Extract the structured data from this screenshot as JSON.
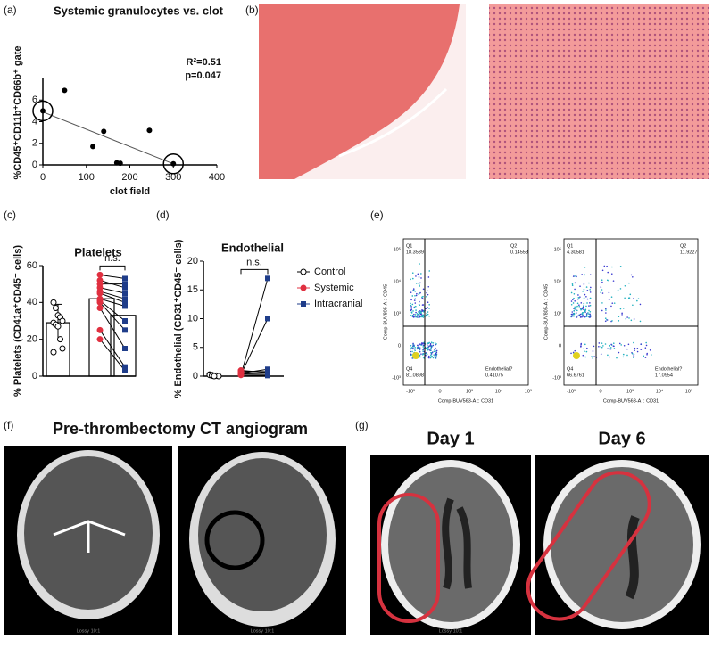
{
  "panel_labels": [
    "(a)",
    "(b)",
    "(c)",
    "(d)",
    "(e)",
    "(f)",
    "(g)"
  ],
  "chart_data": [
    {
      "type": "scatter",
      "title": "Systemic granulocytes vs. clot",
      "xlabel": "clot field",
      "ylabel": "%CD45⁺CD11b⁺CD66b⁺ gate",
      "annotations": [
        "R²=0.51",
        "p=0.047"
      ],
      "x": [
        0,
        50,
        115,
        140,
        170,
        178,
        245,
        300
      ],
      "values": [
        5.0,
        6.9,
        1.7,
        3.1,
        0.2,
        0.15,
        3.2,
        0.1
      ],
      "fit": {
        "x": [
          0,
          300
        ],
        "y": [
          4.9,
          0.1
        ]
      },
      "color": "#000000",
      "xlim": [
        0,
        400
      ],
      "xticks": [
        0,
        100,
        200,
        300,
        400
      ],
      "ylim": [
        0,
        8
      ],
      "yticks": [
        0,
        2,
        4,
        6
      ]
    },
    {
      "type": "paired_dot",
      "title": "Platelets",
      "ylabel": "% Platelets (CD41a⁺CD45⁻ cells)",
      "annotation": "n.s.",
      "ylim": [
        0,
        60
      ],
      "yticks": [
        0,
        20,
        40,
        60
      ],
      "series": [
        {
          "color": "#000000",
          "marker": "open",
          "values": [
            40,
            37,
            33,
            32,
            30,
            29,
            28,
            27,
            20,
            15,
            13
          ],
          "mean": 29,
          "error": 10
        },
        {
          "color": "#e03040",
          "marker": "circle",
          "values": [
            55,
            52,
            50,
            48,
            46,
            45,
            42,
            41,
            40,
            37,
            25,
            20
          ],
          "mean": 42
        },
        {
          "color": "#1f3d8a",
          "marker": "square",
          "values": [
            53,
            48,
            50,
            45,
            42,
            40,
            38,
            30,
            25,
            15,
            5,
            3
          ],
          "mean": 33
        }
      ]
    },
    {
      "type": "paired_dot",
      "title": "Endothelial",
      "ylabel": "% Endothelial (CD31⁺CD45⁻ cells)",
      "annotation": "n.s.",
      "ylim": [
        0,
        20
      ],
      "yticks": [
        0,
        5,
        10,
        15,
        20
      ],
      "legend": "right",
      "series": [
        {
          "name": "Control",
          "color": "#000000",
          "marker": "open",
          "values": [
            0.3,
            0.2,
            0.1,
            0.1,
            0,
            0.2,
            0.1,
            0
          ]
        },
        {
          "name": "Systemic",
          "color": "#e03040",
          "marker": "circle",
          "values": [
            0.2,
            0.3,
            0.5,
            0.8,
            1.0,
            0.4,
            0.2
          ]
        },
        {
          "name": "Intracranial",
          "color": "#1f3d8a",
          "marker": "square",
          "values": [
            17,
            10,
            1.2,
            0.8,
            0.6,
            0.3,
            0.1
          ]
        }
      ]
    }
  ],
  "flow": {
    "ylabel": "Comp-BUV805-A :: CD45",
    "xlabel": "Comp-BUV563-A :: CD31",
    "yticks": [
      "10⁵",
      "10⁴",
      "10³",
      "0",
      "-10³"
    ],
    "xticks": [
      "-10³",
      "0",
      "10³",
      "10⁴",
      "10⁵"
    ],
    "plots": [
      {
        "quadrants": [
          {
            "label": "Q1",
            "value": 18.3539
          },
          {
            "label": "Q2",
            "value": 0.14558
          },
          {
            "label": "Q4",
            "value": 81.0898
          },
          {
            "label": "Endothelial?",
            "value": 0.41075
          }
        ]
      },
      {
        "quadrants": [
          {
            "label": "Q1",
            "value": 4.30581
          },
          {
            "label": "Q2",
            "value": 11.9227
          },
          {
            "label": "Q4",
            "value": 66.6761
          },
          {
            "label": "Endothelial?",
            "value": 17.0954
          }
        ]
      }
    ]
  },
  "ct": {
    "angiogram_title": "Pre-thrombectomy CT angiogram",
    "days": [
      "Day 1",
      "Day 6"
    ],
    "stamp": "Lossy 10:1"
  }
}
